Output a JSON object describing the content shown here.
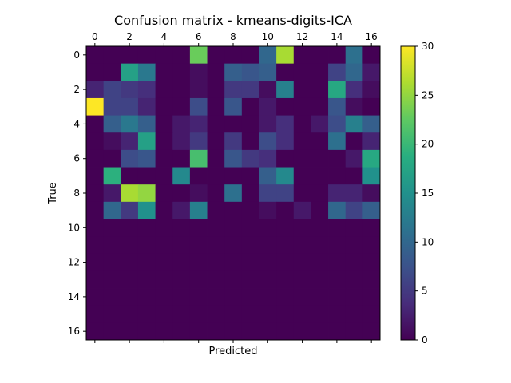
{
  "chart_data": {
    "type": "heatmap",
    "title": "Confusion matrix - kmeans-digits-ICA",
    "xlabel": "Predicted",
    "ylabel": "True",
    "rows": 17,
    "cols": 17,
    "x_ticks": [
      "0",
      "2",
      "4",
      "6",
      "8",
      "10",
      "12",
      "14",
      "16"
    ],
    "y_ticks": [
      "0",
      "2",
      "4",
      "6",
      "8",
      "10",
      "12",
      "14",
      "16"
    ],
    "x_ticks_position": "top",
    "colorbar": {
      "min": 0,
      "max": 30,
      "ticks": [
        "0",
        "5",
        "10",
        "15",
        "20",
        "25",
        "30"
      ],
      "colormap": "viridis"
    },
    "grid": false,
    "matrix": [
      [
        0,
        0,
        0,
        0,
        0,
        0,
        23,
        0,
        0,
        0,
        10,
        26,
        0,
        0,
        0,
        11,
        0
      ],
      [
        0,
        0,
        17,
        12,
        0,
        0,
        1,
        0,
        9,
        8,
        9,
        0,
        0,
        0,
        6,
        10,
        2
      ],
      [
        3,
        6,
        5,
        4,
        0,
        0,
        1,
        0,
        5,
        5,
        1,
        13,
        0,
        0,
        18,
        4,
        1
      ],
      [
        30,
        6,
        6,
        3,
        0,
        0,
        7,
        0,
        8,
        0,
        2,
        0,
        0,
        0,
        8,
        1,
        0
      ],
      [
        0,
        9,
        12,
        9,
        0,
        2,
        3,
        0,
        0,
        0,
        2,
        4,
        0,
        2,
        7,
        13,
        9
      ],
      [
        0,
        1,
        3,
        17,
        0,
        2,
        5,
        0,
        5,
        0,
        7,
        4,
        0,
        0,
        11,
        0,
        3
      ],
      [
        0,
        0,
        7,
        8,
        0,
        0,
        21,
        0,
        8,
        5,
        4,
        0,
        0,
        0,
        0,
        2,
        18
      ],
      [
        0,
        19,
        0,
        0,
        0,
        14,
        0,
        0,
        0,
        0,
        9,
        14,
        0,
        0,
        0,
        0,
        15
      ],
      [
        0,
        2,
        26,
        25,
        0,
        0,
        1,
        0,
        11,
        0,
        6,
        6,
        0,
        0,
        3,
        3,
        1
      ],
      [
        0,
        10,
        5,
        15,
        0,
        2,
        13,
        0,
        0,
        0,
        1,
        0,
        2,
        0,
        10,
        6,
        9
      ],
      [
        0,
        0,
        0,
        0,
        0,
        0,
        0,
        0,
        0,
        0,
        0,
        0,
        0,
        0,
        0,
        0,
        0
      ],
      [
        0,
        0,
        0,
        0,
        0,
        0,
        0,
        0,
        0,
        0,
        0,
        0,
        0,
        0,
        0,
        0,
        0
      ],
      [
        0,
        0,
        0,
        0,
        0,
        0,
        0,
        0,
        0,
        0,
        0,
        0,
        0,
        0,
        0,
        0,
        0
      ],
      [
        0,
        0,
        0,
        0,
        0,
        0,
        0,
        0,
        0,
        0,
        0,
        0,
        0,
        0,
        0,
        0,
        0
      ],
      [
        0,
        0,
        0,
        0,
        0,
        0,
        0,
        0,
        0,
        0,
        0,
        0,
        0,
        0,
        0,
        0,
        0
      ],
      [
        0,
        0,
        0,
        0,
        0,
        0,
        0,
        0,
        0,
        0,
        0,
        0,
        0,
        0,
        0,
        0,
        0
      ],
      [
        0,
        0,
        0,
        0,
        0,
        0,
        0,
        0,
        0,
        0,
        0,
        0,
        0,
        0,
        0,
        0,
        0
      ]
    ]
  }
}
